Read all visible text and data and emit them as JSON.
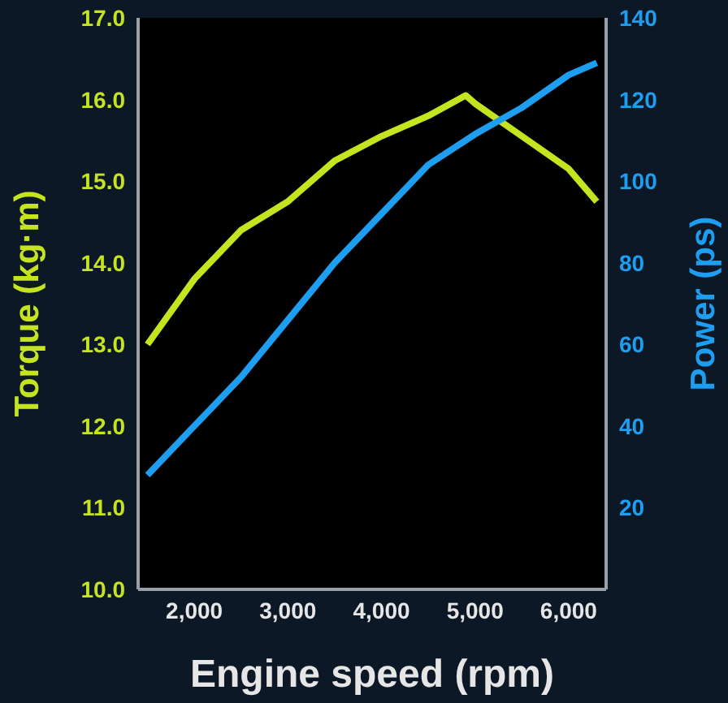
{
  "chart_data": {
    "type": "line",
    "xlabel": "Engine speed (rpm)",
    "ylabel": "Torque (kg·m)",
    "y2label": "Power (ps)",
    "x": [
      1500,
      2000,
      2500,
      3000,
      3500,
      4000,
      4500,
      4900,
      5000,
      5500,
      6000,
      6300
    ],
    "series": [
      {
        "color": "#c5e41f",
        "values": [
          13.0,
          13.8,
          14.4,
          14.75,
          15.25,
          15.55,
          15.8,
          16.05,
          15.95,
          15.55,
          15.15,
          14.75
        ]
      },
      {
        "color": "#1e9ef0",
        "axis": "y2",
        "values": [
          28,
          40,
          52,
          66,
          80,
          92,
          104,
          110,
          111.5,
          118,
          126,
          129
        ]
      }
    ],
    "xlim": [
      1400,
      6400
    ],
    "xticks": [
      {
        "value": 2000,
        "label": "2,000"
      },
      {
        "value": 3000,
        "label": "3,000"
      },
      {
        "value": 4000,
        "label": "4,000"
      },
      {
        "value": 5000,
        "label": "5,000"
      },
      {
        "value": 6000,
        "label": "6,000"
      }
    ],
    "ylim": [
      10,
      17
    ],
    "yticks": [
      {
        "value": 10,
        "label": "10.0"
      },
      {
        "value": 11,
        "label": "11.0"
      },
      {
        "value": 12,
        "label": "12.0"
      },
      {
        "value": 13,
        "label": "13.0"
      },
      {
        "value": 14,
        "label": "14.0"
      },
      {
        "value": 15,
        "label": "15.0"
      },
      {
        "value": 16,
        "label": "16.0"
      },
      {
        "value": 17,
        "label": "17.0"
      }
    ],
    "y2lim": [
      0,
      140
    ],
    "y2ticks": [
      20,
      40,
      60,
      80,
      100,
      120,
      140
    ],
    "grid": false,
    "legend": false,
    "marker": "none",
    "line_style": "solid"
  }
}
